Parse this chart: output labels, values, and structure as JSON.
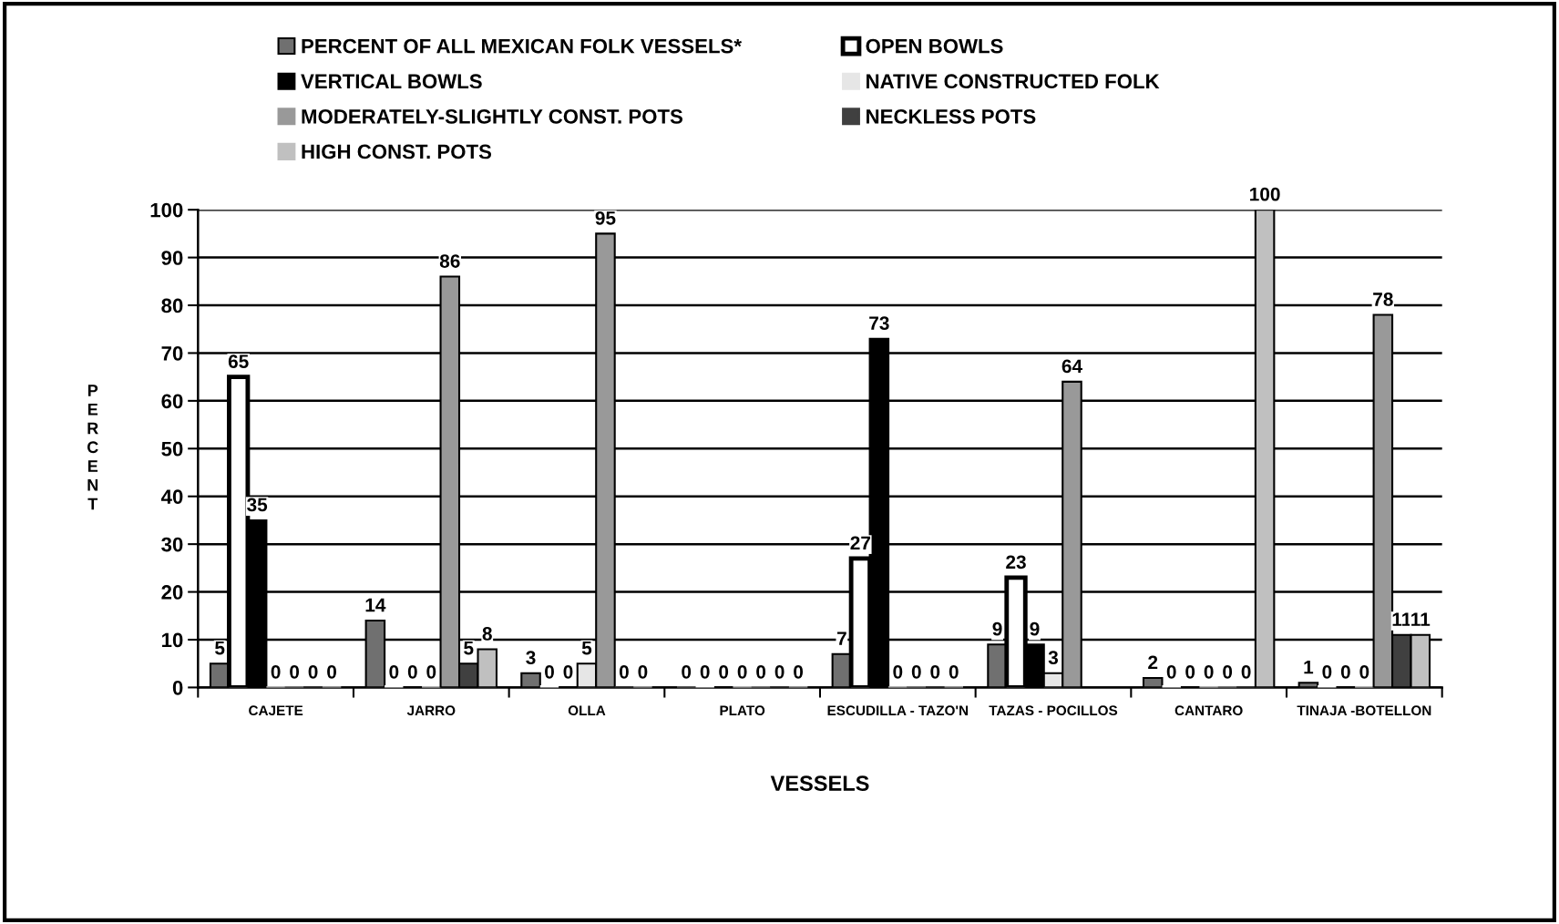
{
  "chart_data": {
    "type": "bar",
    "xlabel": "VESSELS",
    "ylabel": "PERCENT",
    "categories": [
      "CAJETE",
      "JARRO",
      "OLLA",
      "PLATO",
      "ESCUDILLA - TAZO'N",
      "TAZAS - POCILLOS",
      "CANTARO",
      "TINAJA -BOTELLON"
    ],
    "series": [
      {
        "name": "PERCENT OF ALL MEXICAN FOLK VESSELS*",
        "color": "#707070",
        "values": [
          5,
          14,
          3,
          0,
          7,
          9,
          2,
          1
        ]
      },
      {
        "name": "OPEN BOWLS",
        "color": "#ffffff",
        "values": [
          65,
          0,
          0,
          0,
          27,
          23,
          0,
          0
        ]
      },
      {
        "name": "VERTICAL BOWLS",
        "color": "#000000",
        "values": [
          35,
          0,
          0,
          0,
          73,
          9,
          0,
          0
        ]
      },
      {
        "name": "NATIVE CONSTRUCTED FOLK",
        "color": "#e6e6e6",
        "values": [
          0,
          0,
          5,
          0,
          0,
          3,
          0,
          0
        ]
      },
      {
        "name": "MODERATELY-SLIGHTLY CONST. POTS",
        "color": "#999999",
        "values": [
          0,
          86,
          95,
          0,
          0,
          64,
          0,
          78
        ]
      },
      {
        "name": "NECKLESS POTS",
        "color": "#404040",
        "values": [
          0,
          5,
          0,
          0,
          0,
          null,
          0,
          11
        ]
      },
      {
        "name": "HIGH CONST. POTS",
        "color": "#c0c0c0",
        "values": [
          0,
          8,
          0,
          0,
          0,
          null,
          100,
          11
        ]
      }
    ],
    "ylim": [
      0,
      100
    ],
    "yticks": [
      0,
      10,
      20,
      30,
      40,
      50,
      60,
      70,
      80,
      90,
      100
    ],
    "grid": "y",
    "legend": "top",
    "data_labels": true
  }
}
